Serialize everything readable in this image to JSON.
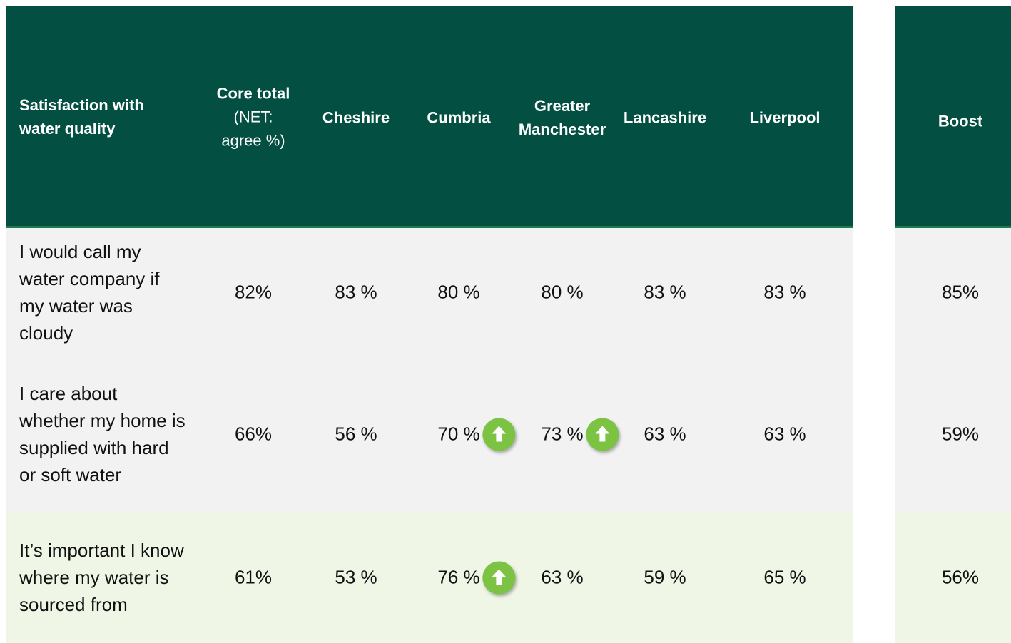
{
  "header": {
    "label": "Satisfaction with water quality",
    "core": {
      "title": "Core total",
      "note": "(NET: agree %)"
    },
    "regions": [
      "Cheshire",
      "Cumbria",
      "Greater Manchester",
      "Lancashire",
      "Liverpool"
    ],
    "boost": "Boost"
  },
  "rows": [
    {
      "label": "I would call my water company if my water was cloudy",
      "core": "82%",
      "regions": [
        "83 %",
        "80 %",
        "80 %",
        "83 %",
        "83 %"
      ],
      "boost": "85%",
      "up": []
    },
    {
      "label": "I care about whether my home is supplied with hard or soft water",
      "core": "66%",
      "regions": [
        "56 %",
        "70 %",
        "73 %",
        "63 %",
        "63 %"
      ],
      "boost": "59%",
      "up": [
        1,
        2
      ]
    },
    {
      "label": "It’s important I know where my water is sourced from",
      "core": "61%",
      "regions": [
        "53 %",
        "76 %",
        "63 %",
        "59 %",
        "65 %"
      ],
      "boost": "56%",
      "up": [
        1
      ]
    }
  ]
}
